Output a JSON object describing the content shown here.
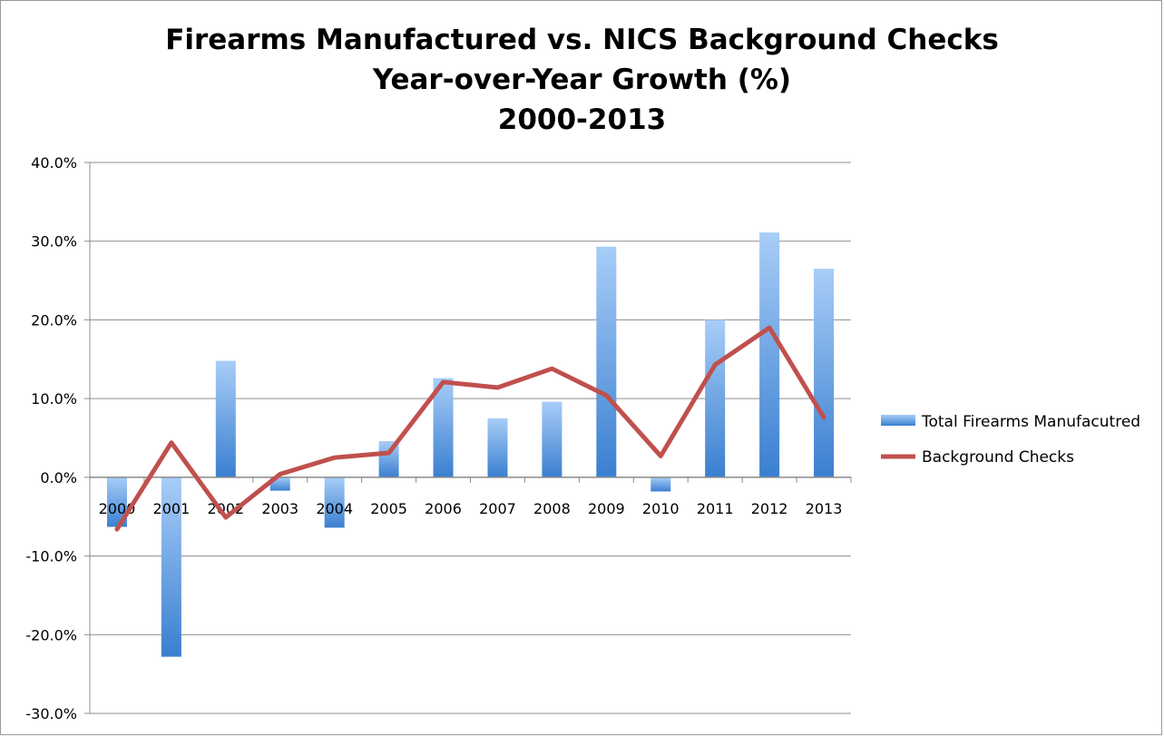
{
  "chart_data": {
    "type": "bar",
    "title": [
      "Firearms Manufactured vs. NICS Background Checks",
      "Year-over-Year Growth (%)",
      "2000-2013"
    ],
    "categories": [
      "2000",
      "2001",
      "2002",
      "2003",
      "2004",
      "2005",
      "2006",
      "2007",
      "2008",
      "2009",
      "2010",
      "2011",
      "2012",
      "2013"
    ],
    "series": [
      {
        "name": "Total Firearms Manufacutred",
        "type": "bar",
        "color": "#5b9bd5",
        "values": [
          -6.3,
          -22.8,
          14.8,
          -1.7,
          -6.4,
          4.6,
          12.6,
          7.5,
          9.6,
          29.3,
          -1.8,
          20.0,
          31.1,
          26.5
        ]
      },
      {
        "name": "Background Checks",
        "type": "line",
        "color": "#c0504d",
        "values": [
          -6.6,
          4.4,
          -5.1,
          0.4,
          2.5,
          3.1,
          12.1,
          11.4,
          13.8,
          10.4,
          2.7,
          14.3,
          19.0,
          7.6
        ]
      }
    ],
    "ylim": [
      -30,
      40
    ],
    "yticks": [
      "-30.0%",
      "-20.0%",
      "-10.0%",
      "0.0%",
      "10.0%",
      "20.0%",
      "30.0%",
      "40.0%"
    ],
    "grid": true,
    "legend_position": "right"
  }
}
